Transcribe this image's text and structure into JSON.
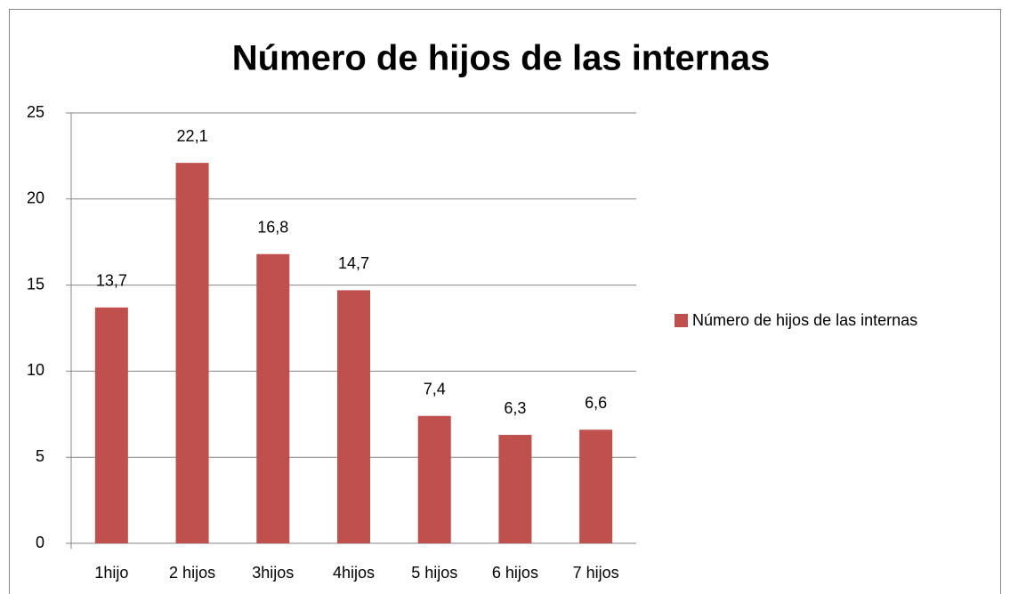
{
  "chart_data": {
    "type": "bar",
    "title": "Número de hijos de las internas",
    "categories": [
      "1hijo",
      "2 hijos",
      "3hijos",
      "4hijos",
      "5 hijos",
      "6 hijos",
      "7 hijos"
    ],
    "series": [
      {
        "name": "Número de hijos de las internas",
        "color": "#c0504d",
        "values": [
          13.7,
          22.1,
          16.8,
          14.7,
          7.4,
          6.3,
          6.6
        ],
        "value_labels": [
          "13,7",
          "22,1",
          "16,8",
          "14,7",
          "7,4",
          "6,3",
          "6,6"
        ]
      }
    ],
    "ylim": [
      0,
      25
    ],
    "yticks": [
      0,
      5,
      10,
      15,
      20,
      25
    ],
    "grid": true,
    "legend": "right"
  }
}
